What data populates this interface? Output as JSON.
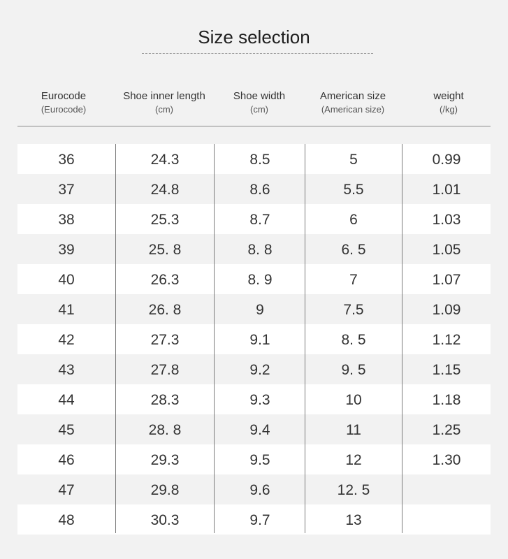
{
  "title": "Size selection",
  "columns": [
    {
      "label": "Eurocode",
      "sub": "(Eurocode)"
    },
    {
      "label": "Shoe inner length",
      "sub": "(cm)"
    },
    {
      "label": "Shoe width",
      "sub": "(cm)"
    },
    {
      "label": "American size",
      "sub": "(American size)"
    },
    {
      "label": "weight",
      "sub": "(/kg)"
    }
  ],
  "rows": [
    [
      "36",
      "24.3",
      "8.5",
      "5",
      "0.99"
    ],
    [
      "37",
      "24.8",
      "8.6",
      "5.5",
      "1.01"
    ],
    [
      "38",
      "25.3",
      "8.7",
      "6",
      "1.03"
    ],
    [
      "39",
      "25. 8",
      "8. 8",
      "6. 5",
      "1.05"
    ],
    [
      "40",
      "26.3",
      "8. 9",
      "7",
      "1.07"
    ],
    [
      "41",
      "26. 8",
      "9",
      "7.5",
      "1.09"
    ],
    [
      "42",
      "27.3",
      "9.1",
      "8. 5",
      "1.12"
    ],
    [
      "43",
      "27.8",
      "9.2",
      "9. 5",
      "1.15"
    ],
    [
      "44",
      "28.3",
      "9.3",
      "10",
      "1.18"
    ],
    [
      "45",
      "28. 8",
      "9.4",
      "11",
      "1.25"
    ],
    [
      "46",
      "29.3",
      "9.5",
      "12",
      "1.30"
    ],
    [
      "47",
      "29.8",
      "9.6",
      "12. 5",
      ""
    ],
    [
      "48",
      "30.3",
      "9.7",
      "13",
      ""
    ]
  ]
}
